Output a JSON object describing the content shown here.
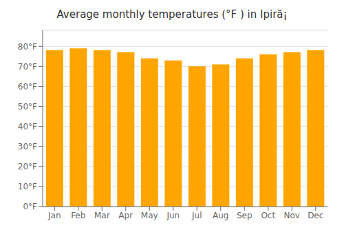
{
  "chart_data": {
    "type": "bar",
    "title": "Average monthly temperatures (°F ) in Ipirã¡",
    "categories": [
      "Jan",
      "Feb",
      "Mar",
      "Apr",
      "May",
      "Jun",
      "Jul",
      "Aug",
      "Sep",
      "Oct",
      "Nov",
      "Dec"
    ],
    "values": [
      78,
      79,
      78,
      77,
      74,
      73,
      70,
      71,
      74,
      76,
      77,
      78
    ],
    "color": "#FFA500",
    "ylim": [
      0,
      88
    ],
    "yticks": [
      {
        "value": 0,
        "label": "0°F"
      },
      {
        "value": 10,
        "label": "10°F"
      },
      {
        "value": 20,
        "label": "20°F"
      },
      {
        "value": 30,
        "label": "30°F"
      },
      {
        "value": 40,
        "label": "40°F"
      },
      {
        "value": 50,
        "label": "50°F"
      },
      {
        "value": 60,
        "label": "60°F"
      },
      {
        "value": 70,
        "label": "70°F"
      },
      {
        "value": 80,
        "label": "80°F"
      }
    ],
    "grid": true
  }
}
